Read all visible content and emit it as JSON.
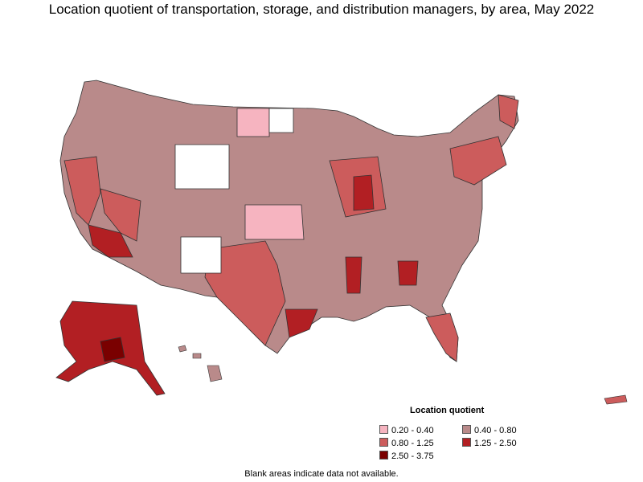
{
  "title": "Location quotient of transportation, storage, and distribution managers, by area, May 2022",
  "legend": {
    "title": "Location quotient",
    "items": [
      {
        "label": "0.20 - 0.40",
        "color": "#f6b4c0"
      },
      {
        "label": "0.40 - 0.80",
        "color": "#b98a8a"
      },
      {
        "label": "0.80 - 1.25",
        "color": "#cc5c5c"
      },
      {
        "label": "1.25 - 2.50",
        "color": "#b21f23"
      },
      {
        "label": "2.50 - 3.75",
        "color": "#7a0000"
      }
    ]
  },
  "footnote": "Blank areas indicate data not available.",
  "colors": {
    "blank": "#ffffff",
    "border": "#333333"
  }
}
